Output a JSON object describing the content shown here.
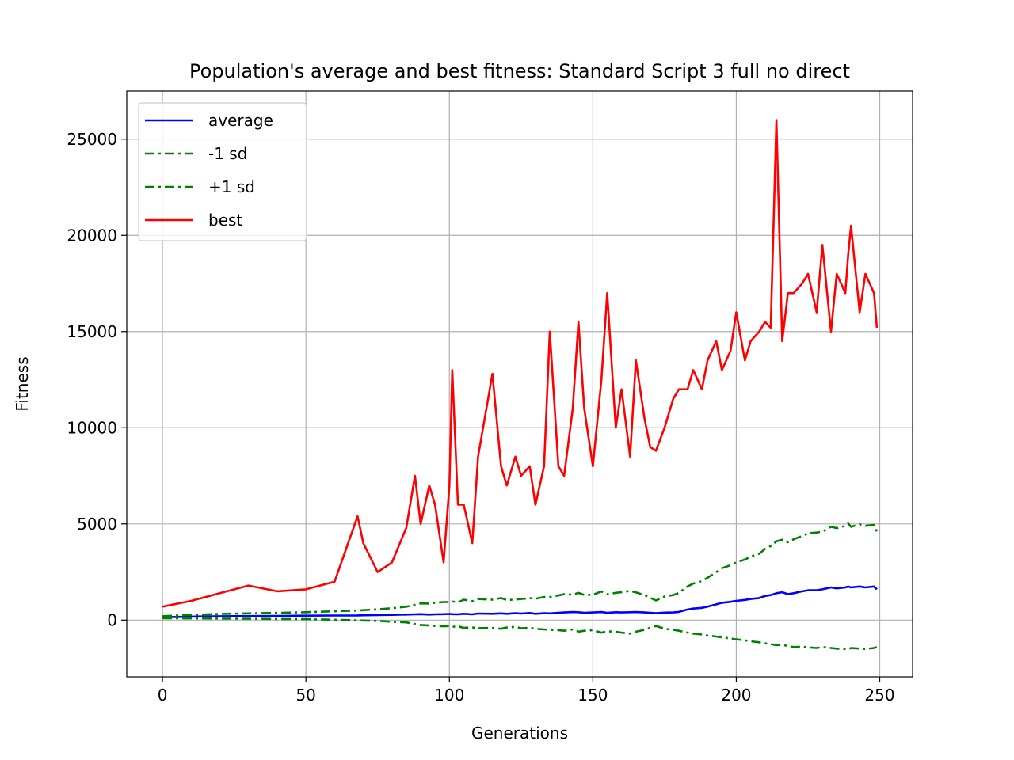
{
  "chart_data": {
    "type": "line",
    "title": "Population's average and best fitness: Standard Script 3 full no direct",
    "xlabel": "Generations",
    "ylabel": "Fitness",
    "xlim": [
      -12.45,
      261.45
    ],
    "ylim": [
      -2950,
      27500
    ],
    "xticks": [
      0,
      50,
      100,
      150,
      200,
      250
    ],
    "yticks": [
      0,
      5000,
      10000,
      15000,
      20000,
      25000
    ],
    "xtick_labels": [
      "0",
      "50",
      "100",
      "150",
      "200",
      "250"
    ],
    "ytick_labels": [
      "0",
      "5000",
      "10000",
      "15000",
      "20000",
      "25000"
    ],
    "grid": true,
    "legend_position": "top-left",
    "colors": {
      "average": "#0000ff",
      "minus_sd": "#008000",
      "plus_sd": "#008000",
      "best": "#ff0000"
    },
    "x": [
      0,
      10,
      20,
      30,
      40,
      50,
      60,
      68,
      70,
      75,
      80,
      85,
      88,
      90,
      93,
      95,
      98,
      100,
      101,
      103,
      105,
      108,
      110,
      115,
      118,
      120,
      123,
      125,
      128,
      130,
      133,
      135,
      138,
      140,
      143,
      145,
      147,
      150,
      153,
      155,
      158,
      160,
      163,
      165,
      168,
      170,
      172,
      175,
      178,
      180,
      183,
      185,
      188,
      190,
      193,
      195,
      198,
      200,
      203,
      205,
      208,
      210,
      212,
      214,
      216,
      218,
      220,
      223,
      225,
      228,
      230,
      233,
      235,
      238,
      239,
      240,
      243,
      245,
      248,
      249
    ],
    "series": [
      {
        "name": "average",
        "style": "solid",
        "values": [
          150,
          180,
          200,
          210,
          220,
          230,
          240,
          245,
          250,
          260,
          270,
          290,
          300,
          310,
          290,
          300,
          310,
          320,
          310,
          300,
          330,
          300,
          340,
          330,
          350,
          330,
          360,
          340,
          370,
          330,
          360,
          350,
          380,
          400,
          420,
          410,
          380,
          400,
          420,
          380,
          410,
          400,
          410,
          420,
          400,
          380,
          360,
          390,
          400,
          430,
          550,
          600,
          640,
          700,
          820,
          900,
          950,
          1000,
          1050,
          1100,
          1150,
          1250,
          1300,
          1400,
          1450,
          1350,
          1400,
          1500,
          1550,
          1550,
          1600,
          1700,
          1650,
          1700,
          1750,
          1700,
          1750,
          1700,
          1750,
          1600
        ]
      },
      {
        "name": "-1 sd",
        "style": "dashdot",
        "values": [
          100,
          90,
          80,
          70,
          60,
          50,
          20,
          -10,
          -20,
          -40,
          -80,
          -120,
          -200,
          -250,
          -280,
          -300,
          -320,
          -300,
          -350,
          -320,
          -400,
          -380,
          -420,
          -400,
          -450,
          -380,
          -350,
          -420,
          -400,
          -450,
          -480,
          -500,
          -520,
          -550,
          -480,
          -600,
          -550,
          -520,
          -650,
          -580,
          -600,
          -650,
          -700,
          -600,
          -500,
          -400,
          -300,
          -450,
          -500,
          -550,
          -650,
          -700,
          -750,
          -800,
          -850,
          -900,
          -950,
          -1000,
          -1050,
          -1100,
          -1150,
          -1200,
          -1250,
          -1300,
          -1280,
          -1350,
          -1400,
          -1380,
          -1420,
          -1450,
          -1400,
          -1450,
          -1480,
          -1500,
          -1520,
          -1450,
          -1480,
          -1500,
          -1450,
          -1400
        ]
      },
      {
        "name": "+1 sd",
        "style": "dashdot",
        "values": [
          200,
          270,
          320,
          350,
          380,
          410,
          460,
          500,
          520,
          560,
          620,
          700,
          800,
          870,
          860,
          900,
          940,
          940,
          970,
          920,
          1060,
          980,
          1100,
          1060,
          1150,
          1040,
          1070,
          1100,
          1140,
          1110,
          1200,
          1200,
          1280,
          1350,
          1320,
          1420,
          1310,
          1320,
          1490,
          1340,
          1420,
          1450,
          1520,
          1440,
          1300,
          1160,
          1020,
          1230,
          1300,
          1410,
          1750,
          1900,
          2030,
          2200,
          2490,
          2700,
          2850,
          3000,
          3150,
          3300,
          3450,
          3700,
          3850,
          4100,
          4180,
          4050,
          4200,
          4380,
          4520,
          4550,
          4600,
          4850,
          4780,
          4900,
          5020,
          4850,
          4980,
          4900,
          4950,
          4600
        ]
      },
      {
        "name": "best",
        "style": "solid",
        "values": [
          700,
          1000,
          1400,
          1800,
          1500,
          1600,
          2000,
          5400,
          4000,
          2500,
          3000,
          4800,
          7500,
          5000,
          7000,
          6000,
          3000,
          7000,
          13000,
          6000,
          6000,
          4000,
          8500,
          12800,
          8000,
          7000,
          8500,
          7500,
          8000,
          6000,
          8000,
          15000,
          8000,
          7500,
          11000,
          15500,
          11000,
          8000,
          12500,
          17000,
          10000,
          12000,
          8500,
          13500,
          10500,
          9000,
          8800,
          10000,
          11500,
          12000,
          12000,
          13000,
          12000,
          13500,
          14500,
          13000,
          14000,
          16000,
          13500,
          14500,
          15000,
          15500,
          15200,
          26000,
          14500,
          17000,
          17000,
          17500,
          18000,
          16000,
          19500,
          15000,
          18000,
          17000,
          19000,
          20500,
          16000,
          18000,
          17000,
          15200
        ]
      }
    ]
  }
}
